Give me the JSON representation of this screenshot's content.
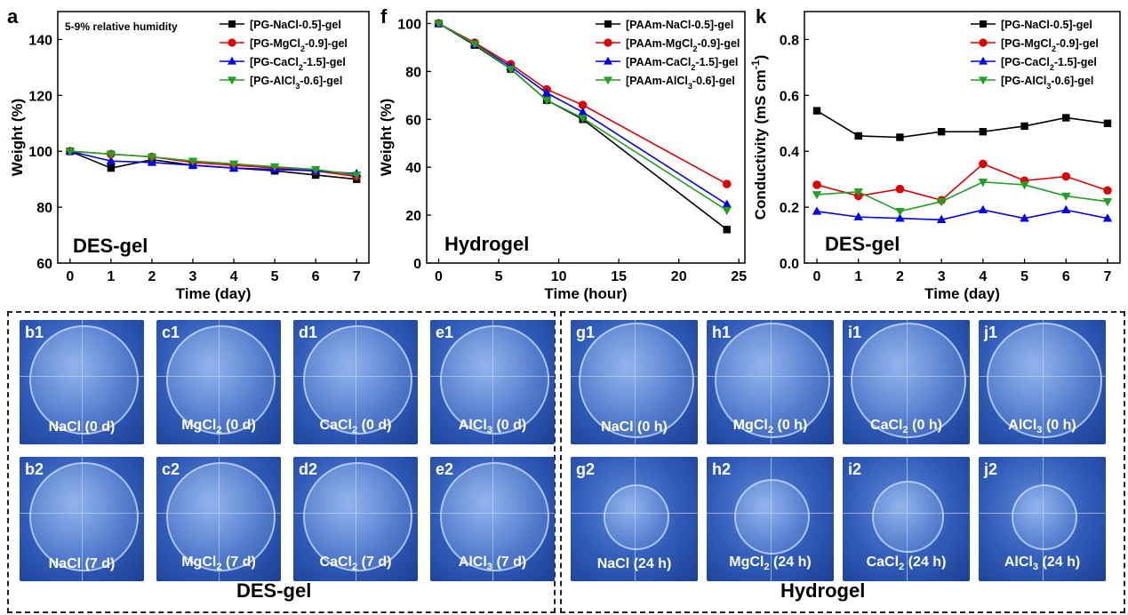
{
  "charts": [
    {
      "panel_label": "a",
      "note": "5-9% relative humidity",
      "corner_label": "DES-gel",
      "xlabel": "Time (day)",
      "ylabel": "Weight (%)",
      "xlim": [
        -0.3,
        7.3
      ],
      "ylim": [
        60,
        150
      ],
      "xticks": [
        0,
        1,
        2,
        3,
        4,
        5,
        6,
        7
      ],
      "yticks": [
        60,
        80,
        100,
        120,
        140
      ],
      "legend": [
        "[PG-NaCl-0.5]-gel",
        "[PG-MgCl2-0.9]-gel",
        "[PG-CaCl2-1.5]-gel",
        "[PG-AlCl3-0.6]-gel"
      ],
      "legend_position": "top-right"
    },
    {
      "panel_label": "f",
      "corner_label": "Hydrogel",
      "xlabel": "Time (hour)",
      "ylabel": "Weight (%)",
      "xlim": [
        -1,
        25.5
      ],
      "ylim": [
        0,
        105
      ],
      "xticks": [
        0,
        5,
        10,
        15,
        20,
        25
      ],
      "yticks": [
        0,
        20,
        40,
        60,
        80,
        100
      ],
      "legend": [
        "[PAAm-NaCl-0.5]-gel",
        "[PAAm-MgCl2-0.9]-gel",
        "[PAAm-CaCl2-1.5]-gel",
        "[PAAm-AlCl3-0.6]-gel"
      ],
      "legend_position": "top-right"
    },
    {
      "panel_label": "k",
      "corner_label": "DES-gel",
      "xlabel": "Time (day)",
      "ylabel": "Conductivity (mS cm-1)",
      "xlim": [
        -0.3,
        7.3
      ],
      "ylim": [
        0,
        0.9
      ],
      "xticks": [
        0,
        1,
        2,
        3,
        4,
        5,
        6,
        7
      ],
      "yticks": [
        "0.0",
        "0.2",
        "0.4",
        "0.6",
        "0.8"
      ],
      "legend": [
        "[PG-NaCl-0.5]-gel",
        "[PG-MgCl2-0.9]-gel",
        "[PG-CaCl2-1.5]-gel",
        "[PG-AlCl3-0.6]-gel"
      ],
      "legend_position": "top-right"
    }
  ],
  "chart_data": [
    {
      "type": "line",
      "x": [
        0,
        1,
        2,
        3,
        4,
        5,
        6,
        7
      ],
      "series": [
        {
          "name": "[PG-NaCl-0.5]-gel",
          "color": "#000000",
          "marker": "square",
          "values": [
            100,
            94,
            97,
            95,
            94,
            93,
            91.5,
            90
          ]
        },
        {
          "name": "[PG-MgCl2-0.9]-gel",
          "color": "#e00000",
          "marker": "circle",
          "values": [
            100,
            99,
            98,
            96,
            95,
            94,
            93,
            91
          ]
        },
        {
          "name": "[PG-CaCl2-1.5]-gel",
          "color": "#0000ee",
          "marker": "triangle-up",
          "values": [
            100,
            96.5,
            96,
            95,
            94,
            93.5,
            93,
            92
          ]
        },
        {
          "name": "[PG-AlCl3-0.6]-gel",
          "color": "#22a022",
          "marker": "triangle-down",
          "values": [
            100,
            99,
            98,
            96.5,
            95.5,
            94.5,
            93.5,
            91.5
          ]
        }
      ]
    },
    {
      "type": "line",
      "x": [
        0,
        3,
        6,
        9,
        12,
        24
      ],
      "series": [
        {
          "name": "[PAAm-NaCl-0.5]-gel",
          "color": "#000000",
          "marker": "square",
          "values": [
            100,
            91,
            81,
            68,
            60,
            14
          ]
        },
        {
          "name": "[PAAm-MgCl2-0.9]-gel",
          "color": "#e00000",
          "marker": "circle",
          "values": [
            100,
            92,
            83,
            72.5,
            66,
            33
          ]
        },
        {
          "name": "[PAAm-CaCl2-1.5]-gel",
          "color": "#0000ee",
          "marker": "triangle-up",
          "values": [
            100,
            91.5,
            82,
            71,
            63,
            24.5
          ]
        },
        {
          "name": "[PAAm-AlCl3-0.6]-gel",
          "color": "#22a022",
          "marker": "triangle-down",
          "values": [
            100,
            91.5,
            81,
            68,
            60.5,
            22
          ]
        }
      ]
    },
    {
      "type": "line",
      "x": [
        0,
        1,
        2,
        3,
        4,
        5,
        6,
        7
      ],
      "series": [
        {
          "name": "[PG-NaCl-0.5]-gel",
          "color": "#000000",
          "marker": "square",
          "values": [
            0.545,
            0.455,
            0.45,
            0.47,
            0.47,
            0.49,
            0.52,
            0.5
          ]
        },
        {
          "name": "[PG-MgCl2-0.9]-gel",
          "color": "#e00000",
          "marker": "circle",
          "values": [
            0.28,
            0.24,
            0.265,
            0.225,
            0.355,
            0.295,
            0.31,
            0.26
          ]
        },
        {
          "name": "[PG-CaCl2-1.5]-gel",
          "color": "#0000ee",
          "marker": "triangle-up",
          "values": [
            0.185,
            0.165,
            0.16,
            0.155,
            0.19,
            0.16,
            0.19,
            0.16
          ]
        },
        {
          "name": "[PG-AlCl3-0.6]-gel",
          "color": "#22a022",
          "marker": "triangle-down",
          "values": [
            0.245,
            0.255,
            0.185,
            0.22,
            0.29,
            0.28,
            0.24,
            0.22
          ]
        }
      ]
    }
  ],
  "photos": {
    "des_title": "DES-gel",
    "hydro_title": "Hydrogel",
    "des_tiles": [
      {
        "tag": "b1",
        "caption": "NaCl (0 d)",
        "scale": 0.85
      },
      {
        "tag": "c1",
        "caption": "MgCl2 (0 d)",
        "scale": 0.85
      },
      {
        "tag": "d1",
        "caption": "CaCl2 (0 d)",
        "scale": 0.85
      },
      {
        "tag": "e1",
        "caption": "AlCl3 (0 d)",
        "scale": 0.85
      },
      {
        "tag": "b2",
        "caption": "NaCl (7 d)",
        "scale": 0.85
      },
      {
        "tag": "c2",
        "caption": "MgCl2 (7 d)",
        "scale": 0.85
      },
      {
        "tag": "d2",
        "caption": "CaCl2 (7 d)",
        "scale": 0.85
      },
      {
        "tag": "e2",
        "caption": "AlCl3 (7 d)",
        "scale": 0.85
      }
    ],
    "hydro_tiles": [
      {
        "tag": "g1",
        "caption": "NaCl (0 h)",
        "scale": 0.9
      },
      {
        "tag": "h1",
        "caption": "MgCl2 (0 h)",
        "scale": 0.9
      },
      {
        "tag": "i1",
        "caption": "CaCl2 (0 h)",
        "scale": 0.9
      },
      {
        "tag": "j1",
        "caption": "AlCl3 (0 h)",
        "scale": 0.9
      },
      {
        "tag": "g2",
        "caption": "NaCl (24 h)",
        "scale": 0.5
      },
      {
        "tag": "h2",
        "caption": "MgCl2 (24 h)",
        "scale": 0.58
      },
      {
        "tag": "i2",
        "caption": "CaCl2 (24 h)",
        "scale": 0.55
      },
      {
        "tag": "j2",
        "caption": "AlCl3 (24 h)",
        "scale": 0.5
      }
    ]
  }
}
